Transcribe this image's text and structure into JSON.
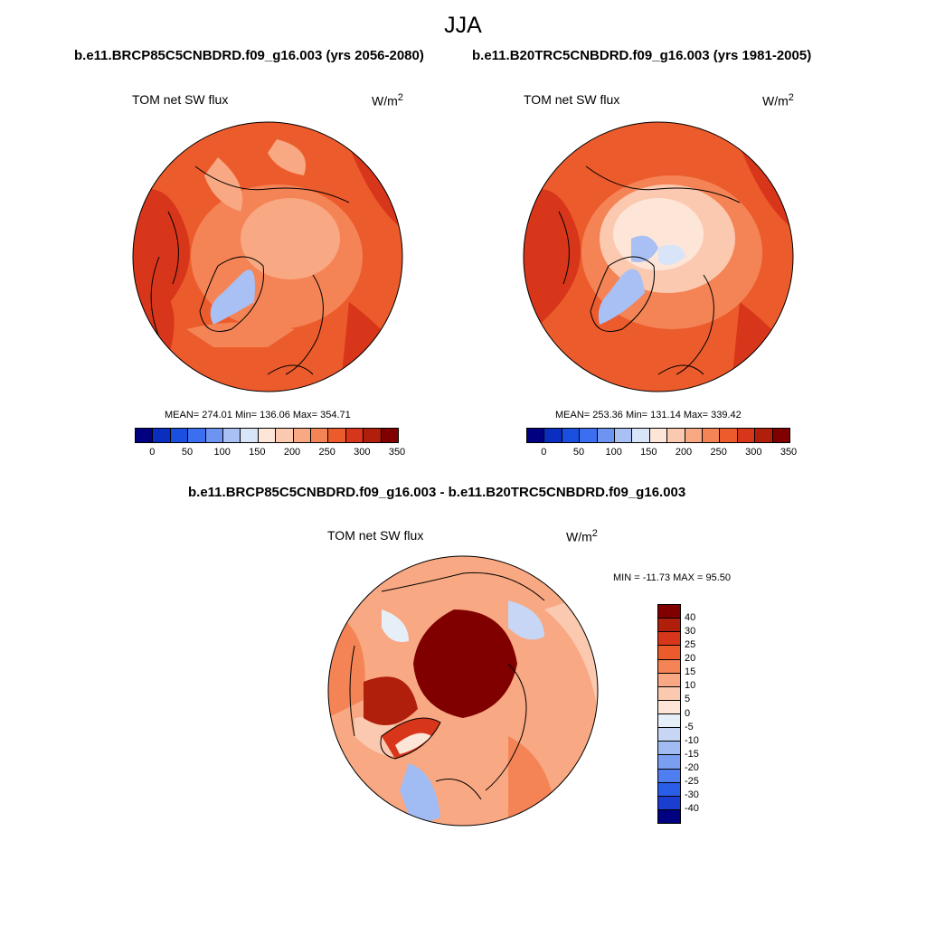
{
  "title": "JJA",
  "panels": [
    {
      "case_title": "b.e11.BRCP85C5CNBDRD.f09_g16.003 (yrs 2056-2080)",
      "variable": "TOM net SW flux",
      "units": "W/m",
      "units_sup": "2",
      "stats": "MEAN= 274.01  Min= 136.06  Max= 354.71",
      "colorbar_ticks": [
        "0",
        "50",
        "100",
        "150",
        "200",
        "250",
        "300",
        "350"
      ]
    },
    {
      "case_title": "b.e11.B20TRC5CNBDRD.f09_g16.003 (yrs 1981-2005)",
      "variable": "TOM net SW flux",
      "units": "W/m",
      "units_sup": "2",
      "stats": "MEAN= 253.36  Min= 131.14  Max= 339.42",
      "colorbar_ticks": [
        "0",
        "50",
        "100",
        "150",
        "200",
        "250",
        "300",
        "350"
      ]
    }
  ],
  "difference": {
    "case_title": "b.e11.BRCP85C5CNBDRD.f09_g16.003 - b.e11.B20TRC5CNBDRD.f09_g16.003",
    "variable": "TOM net SW flux",
    "units": "W/m",
    "units_sup": "2",
    "stats": "MIN = -11.73 MAX =  95.50",
    "colorbar_labels": [
      "40",
      "30",
      "25",
      "20",
      "15",
      "10",
      "5",
      "0",
      "-5",
      "-10",
      "-15",
      "-20",
      "-25",
      "-30",
      "-40"
    ]
  },
  "colors": {
    "abs_scale": [
      "#000080",
      "#0a2ec0",
      "#1a4fe0",
      "#3c6ef0",
      "#6e94f2",
      "#a8c0f4",
      "#d8e4f8",
      "#fde6d8",
      "#fbc9b0",
      "#f8a882",
      "#f48456",
      "#ec5b2c",
      "#d8361a",
      "#b01e0c",
      "#800000"
    ],
    "diff_scale": [
      "#800000",
      "#b01e0c",
      "#d8361a",
      "#ec5b2c",
      "#f48456",
      "#f8a882",
      "#fbc9b0",
      "#fde6d8",
      "#e6eef8",
      "#c6d6f4",
      "#a0bcf2",
      "#7a9ff0",
      "#4f7ef0",
      "#2a5ee8",
      "#1a3fd0",
      "#000080"
    ]
  }
}
